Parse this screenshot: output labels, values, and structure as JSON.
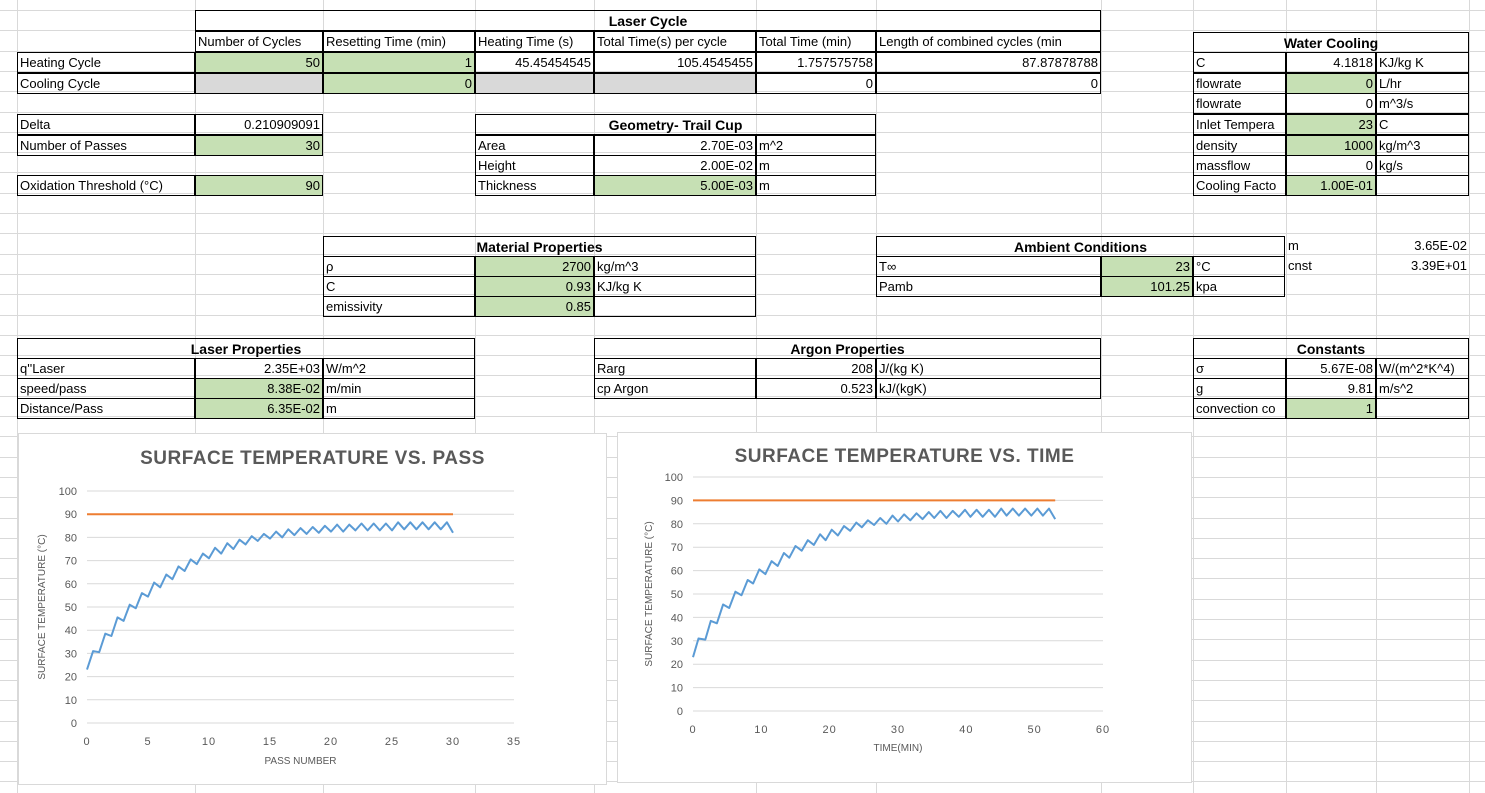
{
  "laser_cycle": {
    "title": "Laser Cycle",
    "headers": [
      "Number of Cycles",
      "Resetting Time (min)",
      "Heating Time (s)",
      "Total Time(s) per cycle",
      "Total Time (min)",
      "Length of combined cycles (min"
    ],
    "heating_label": "Heating Cycle",
    "heating_values": [
      "50",
      "1",
      "45.45454545",
      "105.4545455",
      "1.757575758",
      "87.87878788"
    ],
    "cooling_label": "Cooling Cycle",
    "cooling_values": [
      "",
      "0",
      "",
      "",
      "0",
      "0"
    ]
  },
  "params": {
    "delta_label": "Delta",
    "delta_value": "0.210909091",
    "passes_label": "Number of Passes",
    "passes_value": "30",
    "oxidation_label": "Oxidation Threshold (°C)",
    "oxidation_value": "90"
  },
  "geometry": {
    "title": "Geometry- Trail Cup",
    "rows": [
      {
        "label": "Area",
        "value": "2.70E-03",
        "unit": "m^2"
      },
      {
        "label": "Height",
        "value": "2.00E-02",
        "unit": "m"
      },
      {
        "label": "Thickness",
        "value": "5.00E-03",
        "unit": "m"
      }
    ]
  },
  "water_cooling": {
    "title": "Water Cooling",
    "rows": [
      {
        "label": "C",
        "value": "4.1818",
        "unit": "KJ/kg K"
      },
      {
        "label": "flowrate",
        "value": "0",
        "unit": "L/hr"
      },
      {
        "label": "flowrate",
        "value": "0",
        "unit": "m^3/s"
      },
      {
        "label": "Inlet Tempera",
        "value": "23",
        "unit": "C"
      },
      {
        "label": "density",
        "value": "1000",
        "unit": "kg/m^3"
      },
      {
        "label": "massflow",
        "value": "0",
        "unit": "kg/s"
      },
      {
        "label": "Cooling Facto",
        "value": "1.00E-01",
        "unit": ""
      }
    ]
  },
  "material": {
    "title": "Material Properties",
    "rows": [
      {
        "label": "ρ",
        "value": "2700",
        "unit": "kg/m^3"
      },
      {
        "label": "C",
        "value": "0.93",
        "unit": "KJ/kg K"
      },
      {
        "label": "emissivity",
        "value": "0.85",
        "unit": ""
      }
    ]
  },
  "ambient": {
    "title": "Ambient Conditions",
    "rows": [
      {
        "label": "T∞",
        "value": "23",
        "unit": "°C"
      },
      {
        "label": "Pamb",
        "value": "101.25",
        "unit": "kpa"
      }
    ]
  },
  "extra": {
    "m_label": "m",
    "m_value": "3.65E-02",
    "cnst_label": "cnst",
    "cnst_value": "3.39E+01"
  },
  "laser_props": {
    "title": "Laser Properties",
    "rows": [
      {
        "label": "q''Laser",
        "value": "2.35E+03",
        "unit": "W/m^2"
      },
      {
        "label": "speed/pass",
        "value": "8.38E-02",
        "unit": "m/min"
      },
      {
        "label": "Distance/Pass",
        "value": "6.35E-02",
        "unit": "m"
      }
    ]
  },
  "argon": {
    "title": "Argon Properties",
    "rows": [
      {
        "label": "Rarg",
        "value": "208",
        "unit": "J/(kg K)"
      },
      {
        "label": "cp Argon",
        "value": "0.523",
        "unit": "kJ/(kgK)"
      }
    ]
  },
  "constants": {
    "title": "Constants",
    "rows": [
      {
        "label": "σ",
        "value": "5.67E-08",
        "unit": "W/(m^2*K^4)"
      },
      {
        "label": "g",
        "value": "9.81",
        "unit": "m/s^2"
      },
      {
        "label": "convection co",
        "value": "1",
        "unit": ""
      }
    ]
  },
  "colors": {
    "input_green": "#c6e0b4",
    "gray_cell": "#d9d9d9",
    "series_blue": "#5b9bd5",
    "threshold_orange": "#ed7d31"
  },
  "chart_data": [
    {
      "type": "line",
      "title": "SURFACE TEMPERATURE VS. PASS",
      "xlabel": "PASS NUMBER",
      "ylabel": "SURFACE TEMPERATURE (°C)",
      "xlim": [
        0,
        35
      ],
      "ylim": [
        0,
        100
      ],
      "xticks": [
        "0",
        "5",
        "10",
        "15",
        "20",
        "25",
        "30",
        "35"
      ],
      "yticks": [
        "0",
        "10",
        "20",
        "30",
        "40",
        "50",
        "60",
        "70",
        "80",
        "90",
        "100"
      ],
      "grid": true,
      "series": [
        {
          "color": "#5b9bd5",
          "x": [
            0,
            0.5,
            1,
            1.5,
            2,
            2.5,
            3,
            3.5,
            4,
            4.5,
            5,
            5.5,
            6,
            6.5,
            7,
            7.5,
            8,
            8.5,
            9,
            9.5,
            10,
            10.5,
            11,
            11.5,
            12,
            12.5,
            13,
            13.5,
            14,
            14.5,
            15,
            15.5,
            16,
            16.5,
            17,
            17.5,
            18,
            18.5,
            19,
            19.5,
            20,
            20.5,
            21,
            21.5,
            22,
            22.5,
            23,
            23.5,
            24,
            24.5,
            25,
            25.5,
            26,
            26.5,
            27,
            27.5,
            28,
            28.5,
            29,
            29.5,
            30
          ],
          "y": [
            23,
            31,
            30.5,
            38.5,
            37.5,
            45.5,
            44,
            51,
            49.5,
            56,
            54.5,
            60.5,
            58.5,
            64,
            62,
            67.5,
            65.5,
            70.5,
            68.5,
            73,
            71,
            75.5,
            73,
            77.5,
            75,
            79,
            77,
            80.5,
            78.5,
            81.5,
            79.5,
            82.5,
            80,
            83.5,
            81,
            84,
            81.5,
            84.5,
            82,
            85,
            82.5,
            85.5,
            82.5,
            85.5,
            83,
            86,
            83,
            86,
            83,
            86,
            83,
            86.5,
            83.5,
            86.5,
            83.5,
            86.5,
            83.5,
            86.5,
            83.5,
            86.5,
            82
          ]
        },
        {
          "color": "#ed7d31",
          "x": [
            0,
            30
          ],
          "y": [
            90,
            90
          ]
        }
      ]
    },
    {
      "type": "line",
      "title": "SURFACE TEMPERATURE VS. TIME",
      "xlabel": "TIME(MIN)",
      "ylabel": "SURFACE TEMPERATURE (°C)",
      "xlim": [
        0,
        60
      ],
      "ylim": [
        0,
        100
      ],
      "xticks": [
        "0",
        "10",
        "20",
        "30",
        "40",
        "50",
        "60"
      ],
      "yticks": [
        "0",
        "10",
        "20",
        "30",
        "40",
        "50",
        "60",
        "70",
        "80",
        "90",
        "100"
      ],
      "grid": true,
      "series": [
        {
          "color": "#5b9bd5",
          "x": [
            0,
            0.8,
            1.8,
            2.6,
            3.5,
            4.4,
            5.3,
            6.2,
            7.1,
            8,
            8.8,
            9.7,
            10.6,
            11.5,
            12.4,
            13.3,
            14.1,
            15,
            15.9,
            16.8,
            17.7,
            18.6,
            19.4,
            20.3,
            21.2,
            22.1,
            23,
            23.9,
            24.7,
            25.6,
            26.5,
            27.4,
            28.3,
            29.2,
            30,
            30.9,
            31.8,
            32.7,
            33.6,
            34.5,
            35.3,
            36.2,
            37.1,
            38,
            38.9,
            39.8,
            40.6,
            41.5,
            42.4,
            43.3,
            44.2,
            45.1,
            45.9,
            46.8,
            47.7,
            48.6,
            49.5,
            50.4,
            51.2,
            52.1,
            53
          ],
          "y": [
            23,
            31,
            30.5,
            38.5,
            37.5,
            45.5,
            44,
            51,
            49.5,
            56,
            54.5,
            60.5,
            58.5,
            64,
            62,
            67.5,
            65.5,
            70.5,
            68.5,
            73,
            71,
            75.5,
            73,
            77.5,
            75,
            79,
            77,
            80.5,
            78.5,
            81.5,
            79.5,
            82.5,
            80,
            83.5,
            81,
            84,
            81.5,
            84.5,
            82,
            85,
            82.5,
            85.5,
            82.5,
            85.5,
            83,
            86,
            83,
            86,
            83,
            86,
            83,
            86.5,
            83.5,
            86.5,
            83.5,
            86.5,
            83.5,
            86.5,
            83.5,
            86.5,
            82
          ]
        },
        {
          "color": "#ed7d31",
          "x": [
            0,
            53
          ],
          "y": [
            90,
            90
          ]
        }
      ]
    }
  ]
}
